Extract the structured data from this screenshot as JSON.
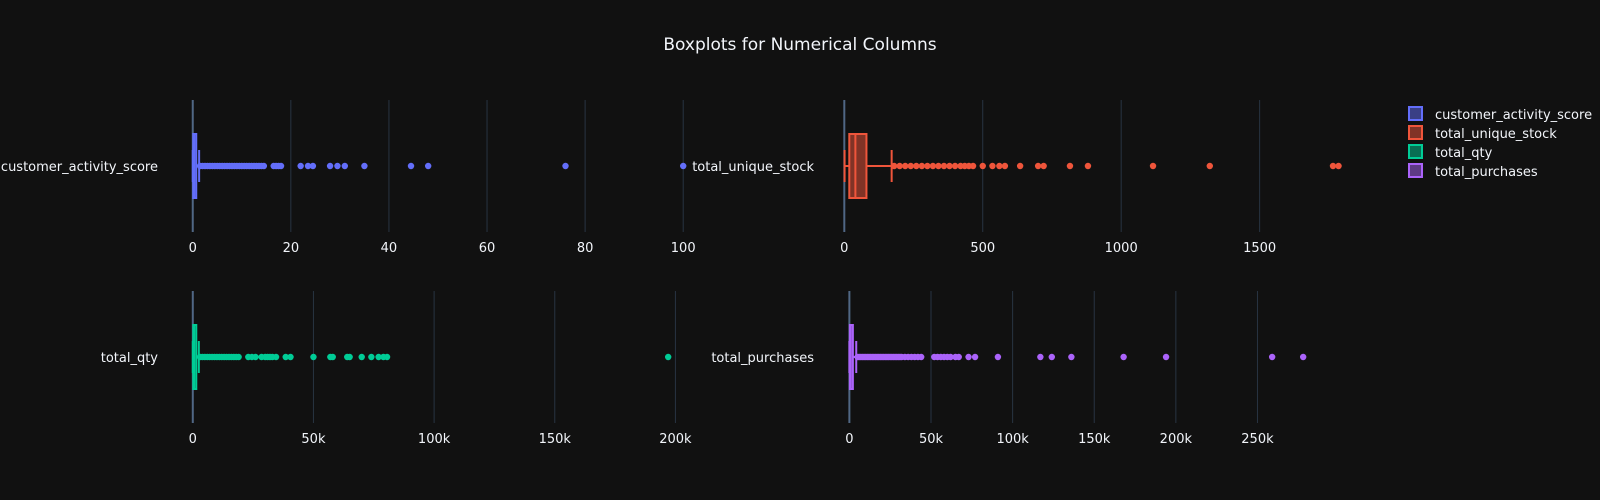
{
  "title": "Boxplots for Numerical Columns",
  "legend": {
    "placement": "top-right",
    "items": [
      {
        "label": "customer_activity_score",
        "color": "#636efa"
      },
      {
        "label": "total_unique_stock",
        "color": "#ef553b"
      },
      {
        "label": "total_qty",
        "color": "#00cc96"
      },
      {
        "label": "total_purchases",
        "color": "#ab63fa"
      }
    ]
  },
  "chart_data": [
    {
      "type": "box",
      "name": "customer_activity_score",
      "color": "#636efa",
      "orientation": "horizontal",
      "xlim": [
        -2.6,
        102.2
      ],
      "ticks": [
        {
          "v": 0,
          "label": "0"
        },
        {
          "v": 20,
          "label": "20"
        },
        {
          "v": 40,
          "label": "40"
        },
        {
          "v": 60,
          "label": "60"
        },
        {
          "v": 80,
          "label": "80"
        },
        {
          "v": 100,
          "label": "100"
        }
      ],
      "grid": true,
      "box": {
        "lower_fence": 0,
        "q1": 0.1,
        "median": 0.3,
        "q3": 0.6,
        "upper_fence": 1.3
      },
      "outliers": [
        1.5,
        2,
        2.5,
        3,
        3.5,
        4,
        4.5,
        5,
        5.5,
        6,
        6.5,
        7,
        7.5,
        8,
        8.5,
        9,
        9.5,
        10,
        10.5,
        11,
        11.5,
        12,
        12.5,
        13,
        13.5,
        14,
        14.5,
        16.5,
        17,
        17.5,
        18,
        22,
        23.5,
        24.5,
        28,
        29.5,
        31,
        35,
        44.5,
        48,
        76,
        100
      ]
    },
    {
      "type": "box",
      "name": "total_unique_stock",
      "color": "#ef553b",
      "orientation": "horizontal",
      "xlim": [
        -30,
        1830
      ],
      "ticks": [
        {
          "v": 0,
          "label": "0"
        },
        {
          "v": 500,
          "label": "500"
        },
        {
          "v": 1000,
          "label": "1000"
        },
        {
          "v": 1500,
          "label": "1500"
        }
      ],
      "grid": true,
      "box": {
        "lower_fence": 1,
        "q1": 18,
        "median": 40,
        "q3": 80,
        "upper_fence": 171
      },
      "outliers": [
        180,
        200,
        220,
        240,
        260,
        280,
        300,
        320,
        340,
        360,
        380,
        400,
        420,
        435,
        450,
        465,
        500,
        535,
        560,
        580,
        635,
        700,
        720,
        815,
        880,
        1115,
        1320,
        1765,
        1785
      ]
    },
    {
      "type": "box",
      "name": "total_qty",
      "color": "#00cc96",
      "orientation": "horizontal",
      "xlim": [
        -5300,
        207700
      ],
      "ticks": [
        {
          "v": 0,
          "label": "0"
        },
        {
          "v": 50000,
          "label": "50k"
        },
        {
          "v": 100000,
          "label": "100k"
        },
        {
          "v": 150000,
          "label": "150k"
        },
        {
          "v": 200000,
          "label": "200k"
        }
      ],
      "grid": true,
      "box": {
        "lower_fence": 0,
        "q1": 200,
        "median": 500,
        "q3": 1100,
        "upper_fence": 2500
      },
      "outliers": [
        3000,
        4000,
        5000,
        6000,
        7000,
        8000,
        9000,
        10000,
        11000,
        12000,
        13000,
        14000,
        15000,
        16000,
        17000,
        18000,
        19000,
        23000,
        24500,
        26000,
        28500,
        30000,
        31000,
        32000,
        33000,
        34500,
        38500,
        40500,
        50000,
        57000,
        58000,
        64000,
        65000,
        70000,
        74000,
        77000,
        79000,
        80500,
        197000
      ]
    },
    {
      "type": "box",
      "name": "total_purchases",
      "color": "#ab63fa",
      "orientation": "horizontal",
      "xlim": [
        -8200,
        307300
      ],
      "ticks": [
        {
          "v": 0,
          "label": "0"
        },
        {
          "v": 50000,
          "label": "50k"
        },
        {
          "v": 100000,
          "label": "100k"
        },
        {
          "v": 150000,
          "label": "150k"
        },
        {
          "v": 200000,
          "label": "200k"
        },
        {
          "v": 250000,
          "label": "250k"
        }
      ],
      "grid": true,
      "box": {
        "lower_fence": 0,
        "q1": 300,
        "median": 800,
        "q3": 1800,
        "upper_fence": 4200
      },
      "outliers": [
        5000,
        6000,
        7000,
        8000,
        9000,
        10000,
        11000,
        12000,
        13000,
        14000,
        15000,
        16000,
        17000,
        18000,
        19000,
        20000,
        21000,
        22000,
        23000,
        24000,
        25000,
        26000,
        27000,
        28000,
        29000,
        30000,
        31000,
        32000,
        34000,
        36000,
        38000,
        40000,
        42000,
        44000,
        52000,
        54000,
        56000,
        58000,
        60000,
        62000,
        65000,
        67000,
        73000,
        77000,
        91000,
        117000,
        124000,
        136000,
        168000,
        194000,
        259000,
        278000
      ]
    }
  ]
}
